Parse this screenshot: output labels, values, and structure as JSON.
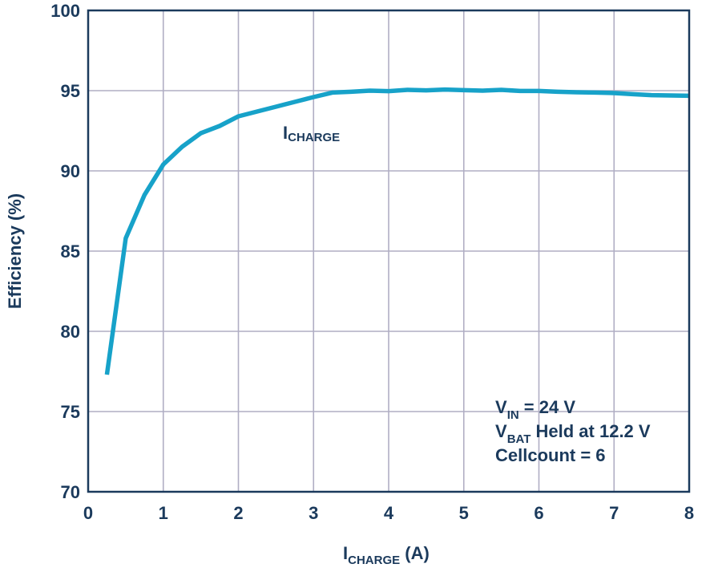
{
  "chart_data": {
    "type": "line",
    "title": "",
    "xlabel": {
      "main": "I",
      "sub": "CHARGE",
      "rest": " (A)"
    },
    "ylabel": "Efficiency (%)",
    "xlim": [
      0,
      8
    ],
    "ylim": [
      70,
      100
    ],
    "xticks": [
      0,
      1,
      2,
      3,
      4,
      5,
      6,
      7,
      8
    ],
    "yticks": [
      70,
      75,
      80,
      85,
      90,
      95,
      100
    ],
    "grid": true,
    "series": [
      {
        "name": "ICHARGE",
        "label_main": "I",
        "label_sub": "CHARGE",
        "color": "#17a2c9",
        "x": [
          0.25,
          0.5,
          0.75,
          1.0,
          1.25,
          1.5,
          1.75,
          2.0,
          2.25,
          2.5,
          2.75,
          3.0,
          3.25,
          3.5,
          3.75,
          4.0,
          4.25,
          4.5,
          4.75,
          5.0,
          5.25,
          5.5,
          5.75,
          6.0,
          6.25,
          6.5,
          6.75,
          7.0,
          7.25,
          7.5,
          7.75,
          8.0
        ],
        "y": [
          77.3,
          85.8,
          88.5,
          90.4,
          91.5,
          92.35,
          92.8,
          93.4,
          93.7,
          94.0,
          94.3,
          94.6,
          94.88,
          94.93,
          95.0,
          94.97,
          95.05,
          95.02,
          95.07,
          95.03,
          95.0,
          95.05,
          94.98,
          94.98,
          94.93,
          94.9,
          94.88,
          94.85,
          94.78,
          94.72,
          94.7,
          94.68
        ]
      }
    ],
    "annotations": [
      {
        "main": "V",
        "sub": "IN",
        "rest": " = 24 V"
      },
      {
        "main": "V",
        "sub": "BAT",
        "rest": " Held at 12.2 V"
      },
      {
        "main": "Cellcount = 6",
        "sub": "",
        "rest": ""
      }
    ],
    "legend": "none"
  }
}
